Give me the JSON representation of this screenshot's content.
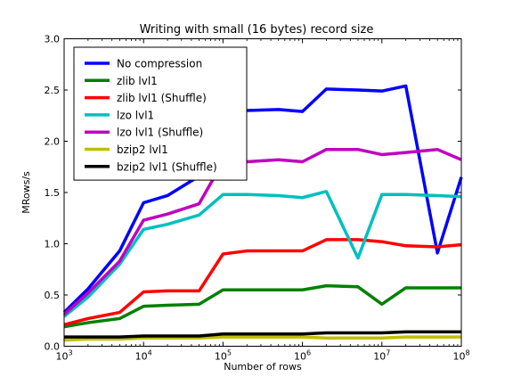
{
  "chart_data": {
    "type": "line",
    "title": "Writing with small (16 bytes) record size",
    "xlabel": "Number of rows",
    "ylabel": "MRows/s",
    "x_scale": "log",
    "xlim": [
      1000,
      100000000
    ],
    "ylim": [
      0,
      3.0
    ],
    "x_ticks": [
      {
        "value": 1000,
        "base": "10",
        "exp": "3"
      },
      {
        "value": 10000,
        "base": "10",
        "exp": "4"
      },
      {
        "value": 100000,
        "base": "10",
        "exp": "5"
      },
      {
        "value": 1000000,
        "base": "10",
        "exp": "6"
      },
      {
        "value": 10000000,
        "base": "10",
        "exp": "7"
      },
      {
        "value": 100000000,
        "base": "10",
        "exp": "8"
      }
    ],
    "y_ticks": [
      {
        "value": 0.0,
        "label": "0.0"
      },
      {
        "value": 0.5,
        "label": "0.5"
      },
      {
        "value": 1.0,
        "label": "1.0"
      },
      {
        "value": 1.5,
        "label": "1.5"
      },
      {
        "value": 2.0,
        "label": "2.0"
      },
      {
        "value": 2.5,
        "label": "2.5"
      },
      {
        "value": 3.0,
        "label": "3.0"
      }
    ],
    "grid": false,
    "legend_position": "top-left",
    "x": [
      1000,
      2000,
      5000,
      10000,
      20000,
      50000,
      100000,
      200000,
      500000,
      1000000,
      2000000,
      5000000,
      10000000,
      20000000,
      50000000,
      100000000
    ],
    "series": [
      {
        "name": "No compression",
        "color": "#0000ff",
        "values": [
          0.33,
          0.56,
          0.93,
          1.4,
          1.47,
          1.66,
          2.28,
          2.3,
          2.31,
          2.29,
          2.51,
          2.5,
          2.49,
          2.54,
          0.91,
          1.65
        ]
      },
      {
        "name": "zlib lvl1",
        "color": "#008000",
        "values": [
          0.19,
          0.23,
          0.27,
          0.39,
          0.4,
          0.41,
          0.55,
          0.55,
          0.55,
          0.55,
          0.59,
          0.58,
          0.41,
          0.57,
          0.57,
          0.57
        ]
      },
      {
        "name": "zlib lvl1 (Shuffle)",
        "color": "#ff0000",
        "values": [
          0.21,
          0.27,
          0.33,
          0.53,
          0.54,
          0.54,
          0.9,
          0.93,
          0.93,
          0.93,
          1.04,
          1.04,
          1.02,
          0.98,
          0.97,
          0.99
        ]
      },
      {
        "name": "lzo lvl1",
        "color": "#00bfbf",
        "values": [
          0.29,
          0.48,
          0.8,
          1.14,
          1.19,
          1.28,
          1.48,
          1.48,
          1.47,
          1.45,
          1.51,
          0.86,
          1.48,
          1.48,
          1.47,
          1.46
        ]
      },
      {
        "name": "lzo lvl1 (Shuffle)",
        "color": "#bf00bf",
        "values": [
          0.31,
          0.52,
          0.83,
          1.23,
          1.29,
          1.39,
          1.8,
          1.8,
          1.82,
          1.8,
          1.92,
          1.92,
          1.87,
          1.89,
          1.92,
          1.82
        ]
      },
      {
        "name": "bzip2 lvl1",
        "color": "#bfbf00",
        "values": [
          0.06,
          0.07,
          0.07,
          0.08,
          0.08,
          0.08,
          0.09,
          0.09,
          0.09,
          0.09,
          0.08,
          0.08,
          0.08,
          0.09,
          0.09,
          0.09
        ]
      },
      {
        "name": "bzip2 lvl1 (Shuffle)",
        "color": "#000000",
        "values": [
          0.09,
          0.09,
          0.09,
          0.1,
          0.1,
          0.1,
          0.12,
          0.12,
          0.12,
          0.12,
          0.13,
          0.13,
          0.13,
          0.14,
          0.14,
          0.14
        ]
      }
    ]
  }
}
